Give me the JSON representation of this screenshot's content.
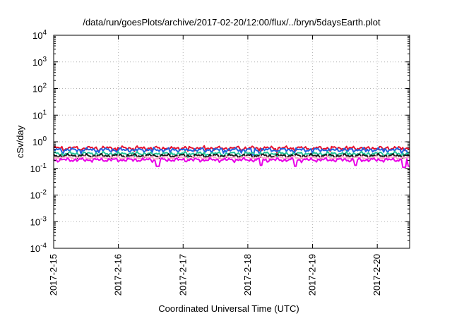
{
  "chart_data": {
    "type": "line",
    "title": "/data/run/goesPlots/archive/2017-02-20/12:00/flux/../bryn/5daysEarth.plot",
    "xlabel": "Coordinated Universal Time (UTC)",
    "ylabel": "cSv/day",
    "y_scale": "log",
    "ylim": [
      0.0001,
      10000
    ],
    "y_ticks": [
      {
        "base": "10",
        "exp": "-4"
      },
      {
        "base": "10",
        "exp": "-3"
      },
      {
        "base": "10",
        "exp": "-2"
      },
      {
        "base": "10",
        "exp": "-1"
      },
      {
        "base": "10",
        "exp": "0"
      },
      {
        "base": "10",
        "exp": "1"
      },
      {
        "base": "10",
        "exp": "2"
      },
      {
        "base": "10",
        "exp": "3"
      },
      {
        "base": "10",
        "exp": "4"
      }
    ],
    "x_ticks": [
      "2017-2-15",
      "2017-2-16",
      "2017-2-17",
      "2017-2-18",
      "2017-2-19",
      "2017-2-20"
    ],
    "xlim": [
      "2017-02-15",
      "2017-02-20T12:00"
    ],
    "grid": true,
    "legend": "none",
    "series": [
      {
        "color": "#e8112d",
        "level": 0.58,
        "dips": []
      },
      {
        "color": "#1f5fe0",
        "level": 0.5,
        "dips": [
          [
            "2017-02-18T02:00",
            0.32
          ],
          [
            "2017-02-20T12:00",
            0.28
          ]
        ]
      },
      {
        "color": "#22c39a",
        "level": 0.36,
        "dips": []
      },
      {
        "color": "#1a1a1a",
        "level": 0.3,
        "dips": []
      },
      {
        "color": "#ffa7c9",
        "level": 0.25,
        "dips": []
      },
      {
        "color": "#e800e8",
        "level": 0.21,
        "dips": [
          [
            "2017-02-16T14:30",
            0.12
          ],
          [
            "2017-02-18T05:00",
            0.13
          ],
          [
            "2017-02-18T17:30",
            0.12
          ],
          [
            "2017-02-19T16:00",
            0.13
          ],
          [
            "2017-02-20T10:00",
            0.11
          ],
          [
            "2017-02-20T12:00",
            0.12
          ]
        ]
      }
    ]
  }
}
